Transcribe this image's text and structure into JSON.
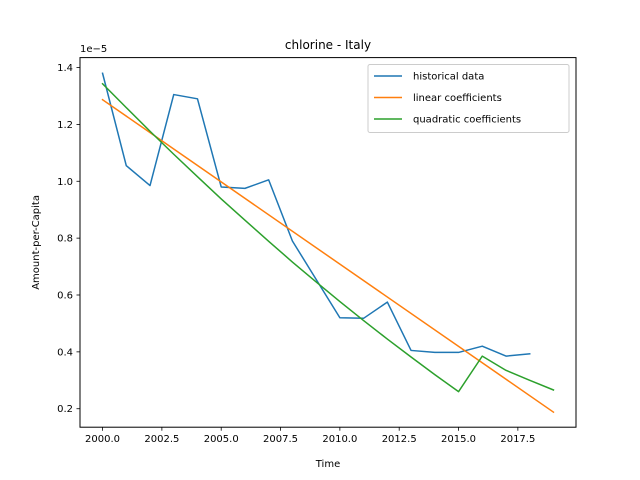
{
  "chart_data": {
    "type": "line",
    "title": "chlorine - Italy",
    "xlabel": "Time",
    "ylabel": "Amount-per-Capita",
    "y_offset_text": "1e−5",
    "y_multiplier": 1e-05,
    "xlim": [
      1999.05,
      2019.95
    ],
    "ylim": [
      0.135,
      1.435
    ],
    "x_ticks": [
      2000.0,
      2002.5,
      2005.0,
      2007.5,
      2010.0,
      2012.5,
      2015.0,
      2017.5
    ],
    "x_tick_labels": [
      "2000.0",
      "2002.5",
      "2005.0",
      "2007.5",
      "2010.0",
      "2012.5",
      "2015.0",
      "2017.5"
    ],
    "y_ticks": [
      0.2,
      0.4,
      0.6,
      0.8,
      1.0,
      1.2,
      1.4
    ],
    "y_tick_labels": [
      "0.2",
      "0.4",
      "0.6",
      "0.8",
      "1.0",
      "1.2",
      "1.4"
    ],
    "grid": false,
    "legend_position": "top-right",
    "series": [
      {
        "name": "historical data",
        "color": "#1f77b4",
        "x": [
          2000,
          2001,
          2002,
          2003,
          2004,
          2005,
          2006,
          2007,
          2008,
          2009,
          2010,
          2011,
          2012,
          2013,
          2014,
          2015,
          2016,
          2017,
          2018
        ],
        "y": [
          1.38,
          1.055,
          0.985,
          1.305,
          1.29,
          0.98,
          0.975,
          1.005,
          0.79,
          0.655,
          0.52,
          0.518,
          0.575,
          0.405,
          0.398,
          0.398,
          0.42,
          0.385,
          0.393
        ]
      },
      {
        "name": "linear coefficients",
        "color": "#ff7f0e",
        "x": [
          2000,
          2019
        ],
        "y": [
          1.287,
          0.188
        ]
      },
      {
        "name": "quadratic coefficients",
        "color": "#2ca02c",
        "x": [
          2000,
          2001,
          2002,
          2003,
          2004,
          2005,
          2006,
          2007,
          2008,
          2009,
          2010,
          2011,
          2012,
          2013,
          2014,
          2015,
          2016,
          2017,
          2018,
          2019
        ],
        "y": [
          1.343,
          1.259,
          1.176,
          1.095,
          1.016,
          0.938,
          0.863,
          0.789,
          0.716,
          0.646,
          0.577,
          0.51,
          0.445,
          0.382,
          0.32,
          0.26,
          0.385,
          0.335,
          0.3,
          0.266
        ]
      }
    ]
  }
}
